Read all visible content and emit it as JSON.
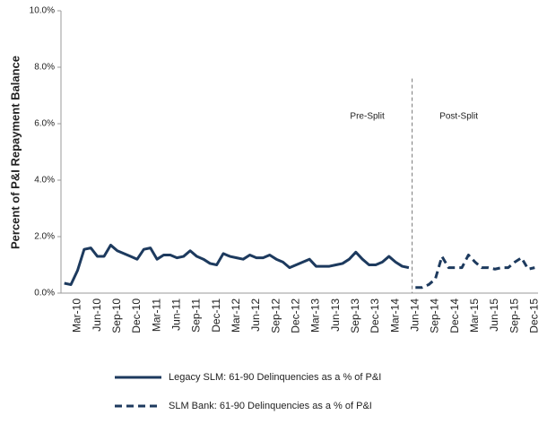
{
  "chart_data": {
    "type": "line",
    "ylabel": "Percent of P&I Repayment  Balance",
    "annotations": [
      "Pre-Split",
      "Post-Split"
    ],
    "categories": [
      null,
      null,
      "Mar-10",
      null,
      null,
      "Jun-10",
      null,
      null,
      "Sep-10",
      null,
      null,
      "Dec-10",
      null,
      null,
      "Mar-11",
      null,
      null,
      "Jun-11",
      null,
      null,
      "Sep-11",
      null,
      null,
      "Dec-11",
      null,
      null,
      "Mar-12",
      null,
      null,
      "Jun-12",
      null,
      null,
      "Sep-12",
      null,
      null,
      "Dec-12",
      null,
      null,
      "Mar-13",
      null,
      null,
      "Jun-13",
      null,
      null,
      "Sep-13",
      null,
      null,
      "Dec-13",
      null,
      null,
      "Mar-14",
      null,
      null,
      "Jun-14",
      null,
      null,
      "Sep-14",
      null,
      null,
      "Dec-14",
      null,
      null,
      "Mar-15",
      null,
      null,
      "Jun-15",
      null,
      null,
      "Sep-15",
      null,
      null,
      "Dec-15"
    ],
    "series": [
      {
        "name": "Legacy SLM: 61-90 Delinquencies as a % of P&I",
        "color": "#1d3a5e",
        "style": "solid",
        "values": [
          0.35,
          0.3,
          0.8,
          1.55,
          1.6,
          1.3,
          1.3,
          1.7,
          1.5,
          1.4,
          1.3,
          1.2,
          1.55,
          1.6,
          1.2,
          1.35,
          1.35,
          1.25,
          1.3,
          1.5,
          1.3,
          1.2,
          1.05,
          1.0,
          1.4,
          1.3,
          1.25,
          1.2,
          1.35,
          1.25,
          1.25,
          1.35,
          1.2,
          1.1,
          0.9,
          1.0,
          1.1,
          1.2,
          0.95,
          0.95,
          0.95,
          1.0,
          1.05,
          1.2,
          1.45,
          1.2,
          1.0,
          1.0,
          1.1,
          1.3,
          1.1,
          0.95,
          0.9,
          null,
          null,
          null,
          null,
          null,
          null,
          null,
          null,
          null,
          null,
          null,
          null,
          null,
          null,
          null,
          null,
          null,
          null,
          null
        ]
      },
      {
        "name": "SLM Bank: 61-90 Delinquencies as a % of P&I",
        "color": "#1d3a5e",
        "style": "dashed",
        "values": [
          null,
          null,
          null,
          null,
          null,
          null,
          null,
          null,
          null,
          null,
          null,
          null,
          null,
          null,
          null,
          null,
          null,
          null,
          null,
          null,
          null,
          null,
          null,
          null,
          null,
          null,
          null,
          null,
          null,
          null,
          null,
          null,
          null,
          null,
          null,
          null,
          null,
          null,
          null,
          null,
          null,
          null,
          null,
          null,
          null,
          null,
          null,
          null,
          null,
          null,
          null,
          null,
          null,
          0.2,
          0.2,
          0.3,
          0.5,
          1.3,
          0.9,
          0.9,
          0.9,
          1.35,
          1.1,
          0.9,
          0.9,
          0.85,
          0.9,
          0.9,
          1.1,
          1.25,
          0.85,
          0.9
        ]
      }
    ],
    "ylim": [
      0,
      10
    ],
    "yticks": [
      {
        "value": 0,
        "label": "0.0%"
      },
      {
        "value": 2,
        "label": "2.0%"
      },
      {
        "value": 4,
        "label": "4.0%"
      },
      {
        "value": 6,
        "label": "6.0%"
      },
      {
        "value": 8,
        "label": "8.0%"
      },
      {
        "value": 10,
        "label": "10.0%"
      }
    ],
    "grid": false
  }
}
